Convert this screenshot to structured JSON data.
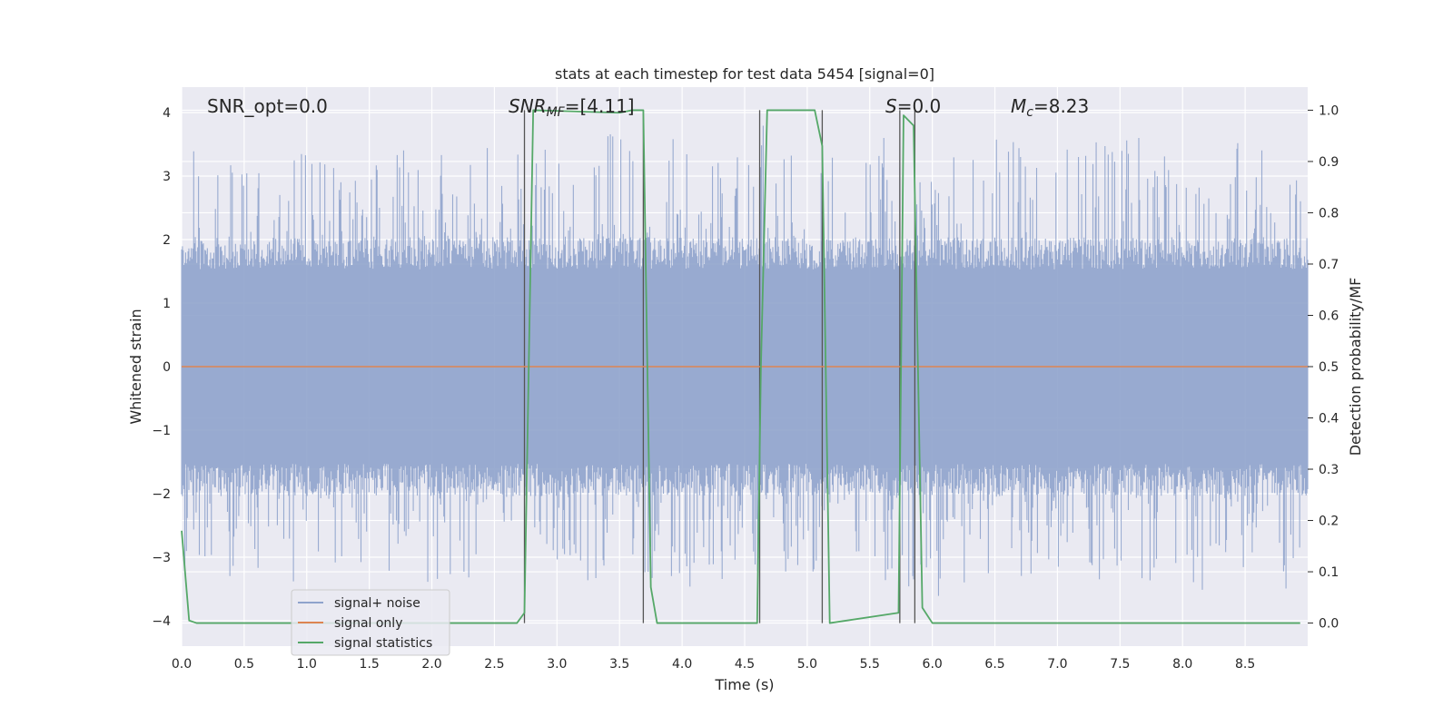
{
  "chart_data": {
    "type": "line",
    "title": "stats at each timestep for test data 5454 [signal=0]",
    "xlabel": "Time (s)",
    "ylabel": "Whitened strain",
    "y2label": "Detection probability/MF",
    "xlim": [
      0.0,
      9.0
    ],
    "ylim": [
      -4.4,
      4.4
    ],
    "y2lim": [
      -0.045,
      1.045
    ],
    "grid": true,
    "legend_position": "lower-left",
    "x_ticks": [
      "0.0",
      "0.5",
      "1.0",
      "1.5",
      "2.0",
      "2.5",
      "3.0",
      "3.5",
      "4.0",
      "4.5",
      "5.0",
      "5.5",
      "6.0",
      "6.5",
      "7.0",
      "7.5",
      "8.0",
      "8.5"
    ],
    "y_ticks": [
      "4",
      "3",
      "2",
      "1",
      "0",
      "−1",
      "−2",
      "−3",
      "−4"
    ],
    "y2_ticks": [
      "1.0",
      "0.9",
      "0.8",
      "0.7",
      "0.6",
      "0.5",
      "0.4",
      "0.3",
      "0.2",
      "0.1",
      "0.0"
    ],
    "annotations": {
      "snr_opt": "SNR_opt=0.0",
      "snr_mf_main": "SNR",
      "snr_mf_sub": "MF",
      "snr_mf_value": "=[4.11]",
      "s_main": "S",
      "s_value": "=0.0",
      "mc_main": "M",
      "mc_sub": "c",
      "mc_value": "=8.23"
    },
    "series": [
      {
        "name": "signal+ noise",
        "color": "#8fa3cc",
        "noise_envelope": {
          "typical_amplitude": 1.7,
          "peak_max": 4.0,
          "peak_min": -3.8
        }
      },
      {
        "name": "signal only",
        "color": "#dd8452",
        "x": [
          0.0,
          9.0
        ],
        "y": [
          0.0,
          0.0
        ]
      },
      {
        "name": "signal statistics",
        "color": "#55a868",
        "axis": "right",
        "x": [
          0.0,
          0.06,
          0.12,
          2.68,
          2.74,
          2.81,
          3.5,
          3.6,
          3.69,
          3.75,
          3.8,
          4.6,
          4.63,
          4.68,
          5.06,
          5.12,
          5.18,
          5.73,
          5.77,
          5.85,
          5.92,
          6.0,
          8.94
        ],
        "y": [
          0.18,
          0.005,
          0.0,
          0.0,
          0.02,
          1.0,
          0.995,
          1.0,
          1.0,
          0.07,
          0.0,
          0.0,
          0.5,
          1.0,
          1.0,
          0.93,
          0.0,
          0.02,
          0.99,
          0.97,
          0.03,
          0.0,
          0.0
        ]
      }
    ],
    "vertical_markers": [
      2.74,
      3.69,
      4.62,
      5.12,
      5.74,
      5.86
    ]
  }
}
